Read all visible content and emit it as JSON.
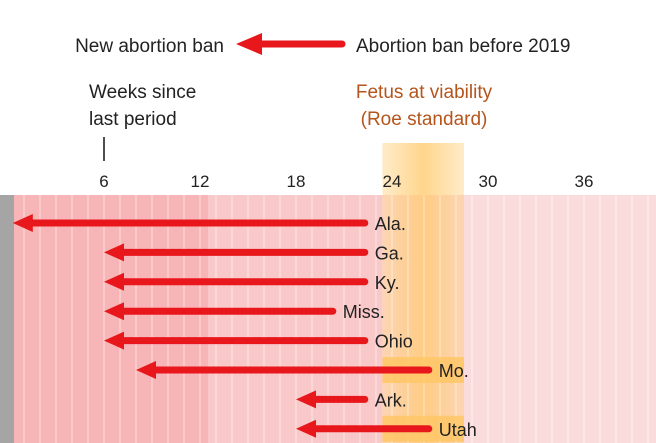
{
  "legend": {
    "new_ban": "New abortion ban",
    "old_ban": "Abortion ban before 2019"
  },
  "axis_title": {
    "line1": "Weeks since",
    "line2": "last period"
  },
  "viability_label": {
    "line1": "Fetus at viability",
    "line2": "(Roe standard)"
  },
  "colors": {
    "arrow": "#e8171c",
    "text": "#222222",
    "viability": "#b5541b",
    "band": "#ffc766",
    "bg_dark": "#f7b5b7",
    "bg_mid": "#f9c9ca",
    "bg_light": "#fbdcdd",
    "gray": "#a5a5a5"
  },
  "chart_data": {
    "type": "arrow-range",
    "title": "",
    "xlabel": "Weeks since last period",
    "xlim": [
      0,
      41
    ],
    "x_ticks": [
      6,
      12,
      18,
      24,
      30,
      36
    ],
    "viability_range": [
      23.4,
      28.5
    ],
    "series": [
      {
        "state": "Ala.",
        "from_week": 22.3,
        "to_week": 0.3
      },
      {
        "state": "Ga.",
        "from_week": 22.3,
        "to_week": 6
      },
      {
        "state": "Ky.",
        "from_week": 22.3,
        "to_week": 6
      },
      {
        "state": "Miss.",
        "from_week": 20.3,
        "to_week": 6
      },
      {
        "state": "Ohio",
        "from_week": 22.3,
        "to_week": 6
      },
      {
        "state": "Mo.",
        "from_week": 26.3,
        "to_week": 8
      },
      {
        "state": "Ark.",
        "from_week": 22.3,
        "to_week": 18
      },
      {
        "state": "Utah",
        "from_week": 26.3,
        "to_week": 18
      }
    ]
  }
}
